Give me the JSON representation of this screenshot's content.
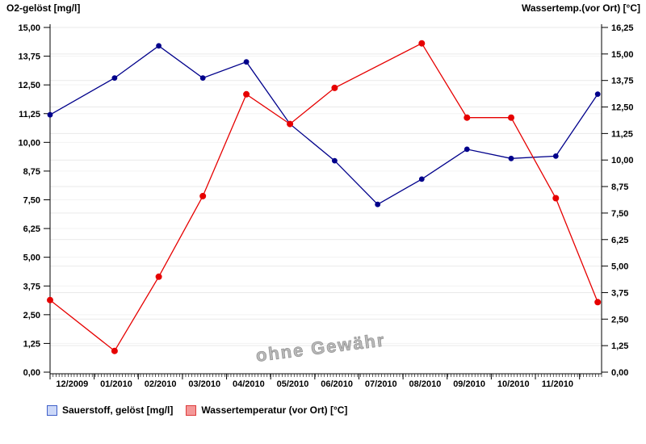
{
  "titles": {
    "left_axis": "O2-gelöst [mg/l]",
    "right_axis": "Wassertemp.(vor Ort) [°C]"
  },
  "watermark": "ohne Gewähr",
  "legend": [
    {
      "label": "Sauerstoff, gelöst [mg/l]",
      "fill": "#ccd8f8",
      "border": "#4060c8"
    },
    {
      "label": "Wassertemperatur (vor Ort) [°C]",
      "fill": "#f49898",
      "border": "#dd3c3c"
    }
  ],
  "chart_data": {
    "type": "line",
    "title": "",
    "grid": true,
    "legend_position": "bottom",
    "x_tick_labels": [
      "12/2009",
      "01/2010",
      "02/2010",
      "03/2010",
      "04/2010",
      "05/2010",
      "06/2010",
      "07/2010",
      "08/2010",
      "09/2010",
      "10/2010",
      "11/2010"
    ],
    "left_axis": {
      "title": "O2-gelöst [mg/l]",
      "min": 0,
      "max": 15,
      "step": 1.25,
      "tick_labels": [
        "0,00",
        "1,25",
        "2,50",
        "3,75",
        "5,00",
        "6,25",
        "7,50",
        "8,75",
        "10,00",
        "11,25",
        "12,50",
        "13,75",
        "15,00"
      ]
    },
    "right_axis": {
      "title": "Wassertemp.(vor Ort) [°C]",
      "min": 0,
      "max": 16.25,
      "step": 1.25,
      "tick_labels": [
        "0,00",
        "1,25",
        "2,50",
        "3,75",
        "5,00",
        "6,25",
        "7,50",
        "8,75",
        "10,00",
        "11,25",
        "12,50",
        "13,75",
        "15,00",
        "16,25"
      ]
    },
    "series": [
      {
        "name": "Sauerstoff, gelöst [mg/l]",
        "axis": "left",
        "color": "#00008b",
        "marker_radius": 3.4,
        "points": [
          {
            "month": "12/2009",
            "value": 11.2,
            "x_frac": 0.0
          },
          {
            "month": "01/2010",
            "value": 12.8,
            "x_frac": 0.117
          },
          {
            "month": "02/2010",
            "value": 14.2,
            "x_frac": 0.197
          },
          {
            "month": "03/2010",
            "value": 12.8,
            "x_frac": 0.277
          },
          {
            "month": "04/2010",
            "value": 13.5,
            "x_frac": 0.356
          },
          {
            "month": "05/2010",
            "value": 10.8,
            "x_frac": 0.435
          },
          {
            "month": "06/2010",
            "value": 9.2,
            "x_frac": 0.516
          },
          {
            "month": "07/2010",
            "value": 7.3,
            "x_frac": 0.594
          },
          {
            "month": "08/2010",
            "value": 8.4,
            "x_frac": 0.674
          },
          {
            "month": "09/2010",
            "value": 9.7,
            "x_frac": 0.756
          },
          {
            "month": "10/2010",
            "value": 9.3,
            "x_frac": 0.836
          },
          {
            "month": "11/2010",
            "value": 9.4,
            "x_frac": 0.917
          },
          {
            "month": "12/2010",
            "value": 12.1,
            "x_frac": 0.993
          }
        ]
      },
      {
        "name": "Wassertemperatur (vor Ort) [°C]",
        "axis": "right",
        "color": "#e60000",
        "marker_radius": 4,
        "points": [
          {
            "month": "12/2009",
            "value": 3.4,
            "x_frac": 0.0
          },
          {
            "month": "01/2010",
            "value": 1.0,
            "x_frac": 0.117
          },
          {
            "month": "02/2010",
            "value": 4.5,
            "x_frac": 0.197
          },
          {
            "month": "03/2010",
            "value": 8.3,
            "x_frac": 0.277
          },
          {
            "month": "04/2010",
            "value": 13.1,
            "x_frac": 0.356
          },
          {
            "month": "05/2010",
            "value": 11.7,
            "x_frac": 0.435
          },
          {
            "month": "06/2010",
            "value": 13.4,
            "x_frac": 0.516
          },
          {
            "month": "08/2010",
            "value": 15.5,
            "x_frac": 0.674
          },
          {
            "month": "09/2010",
            "value": 12.0,
            "x_frac": 0.756
          },
          {
            "month": "10/2010",
            "value": 12.0,
            "x_frac": 0.836
          },
          {
            "month": "11/2010",
            "value": 8.2,
            "x_frac": 0.917
          },
          {
            "month": "12/2010",
            "value": 3.3,
            "x_frac": 0.993
          }
        ]
      }
    ]
  }
}
